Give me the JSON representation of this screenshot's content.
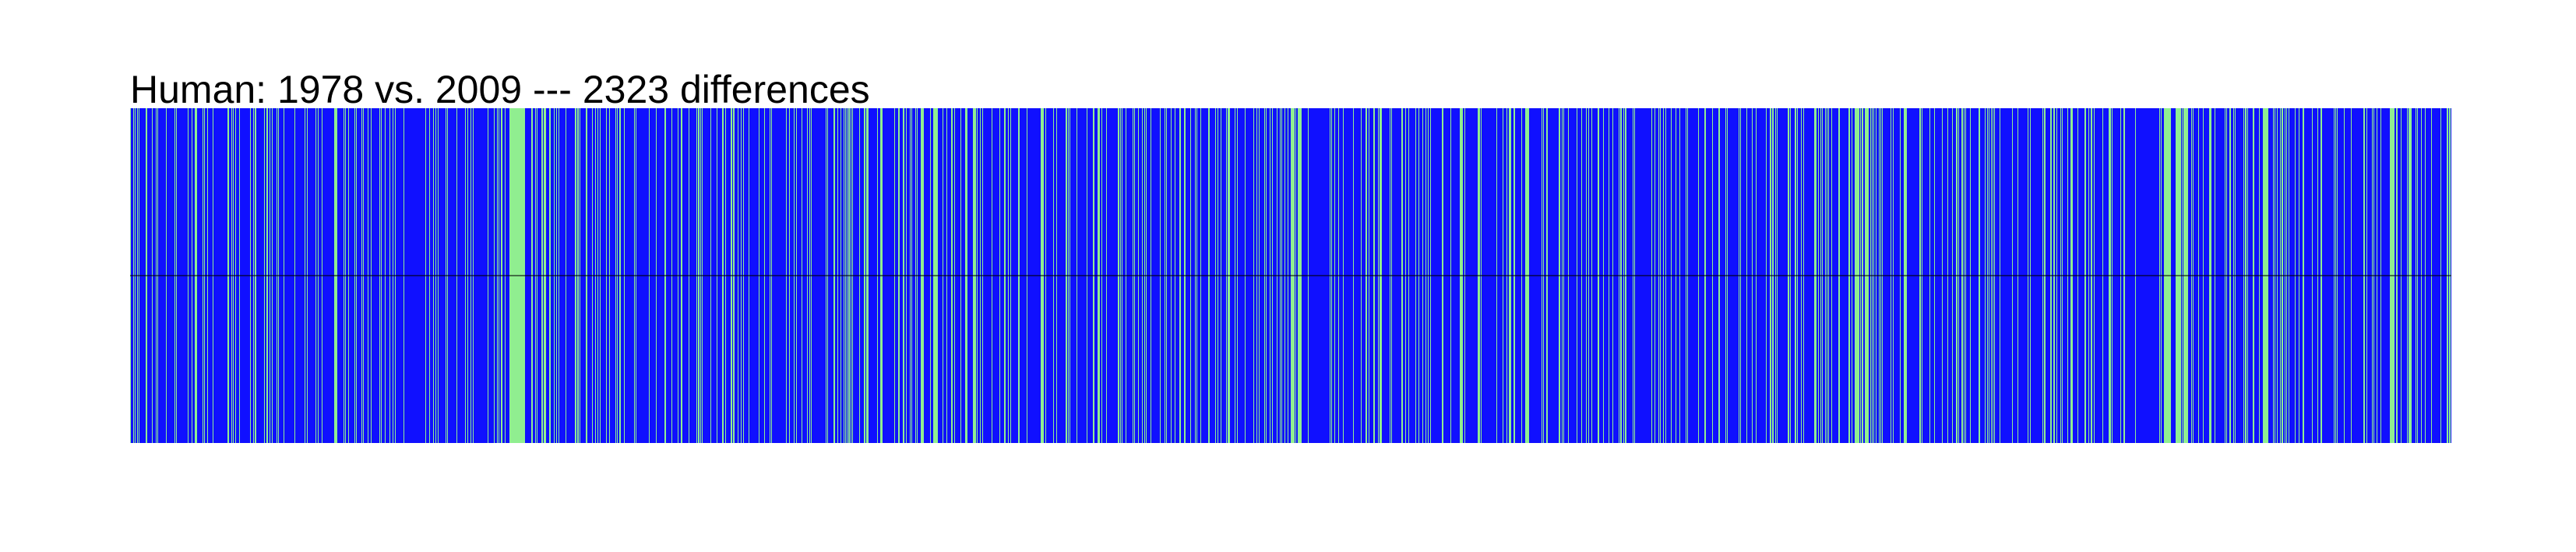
{
  "chart_data": {
    "type": "heatmap",
    "title": "Human: 1978 vs. 2009 --- 2323 differences",
    "xlabel": "",
    "ylabel": "",
    "grid": false,
    "colors": {
      "difference": "#1010ff",
      "match": "#90ee90",
      "background": "#ffffff",
      "divider": "#000000"
    },
    "n_positions": 2980,
    "n_differences": 2323,
    "rows": [
      "1978",
      "2009"
    ],
    "match_bands": [
      [
        487,
        506
      ],
      [
        1015,
        1018
      ],
      [
        1031,
        1034
      ],
      [
        1490,
        1494
      ],
      [
        1499,
        1502
      ],
      [
        2214,
        2219
      ],
      [
        2227,
        2231
      ],
      [
        2612,
        2619
      ],
      [
        2626,
        2630
      ],
      [
        2636,
        2640
      ],
      [
        2738,
        2744
      ],
      [
        2902,
        2906
      ],
      [
        2925,
        2928
      ]
    ]
  }
}
